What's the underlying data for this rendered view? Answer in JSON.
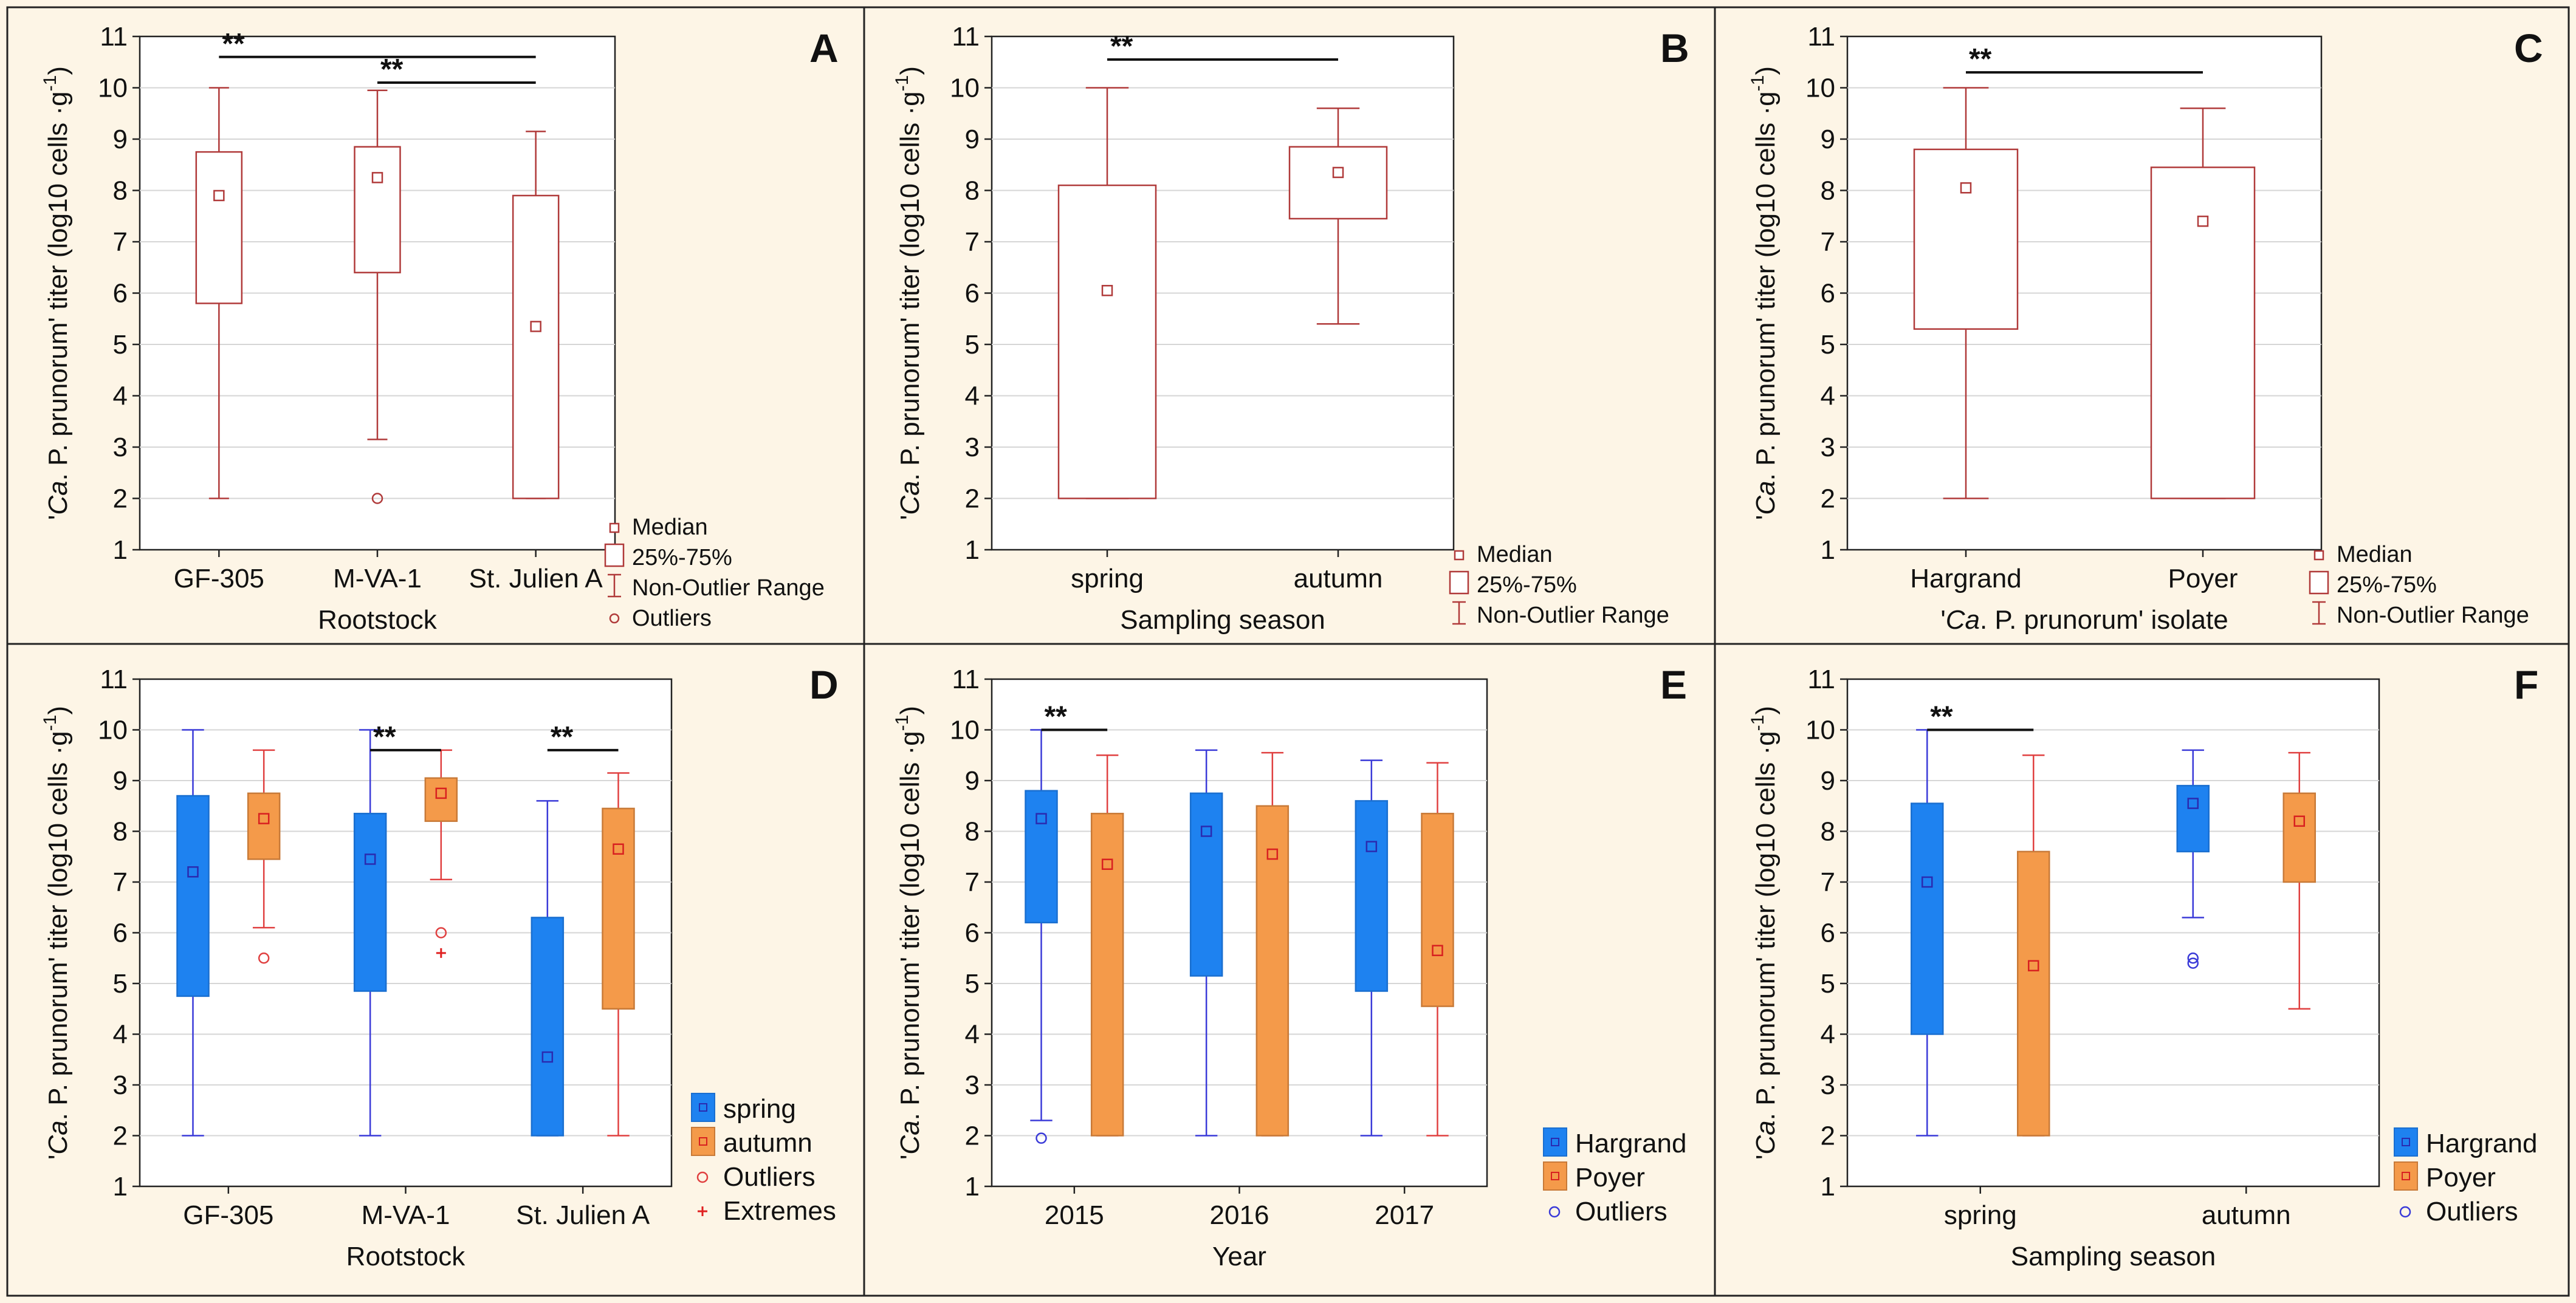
{
  "figure": {
    "background": "#fdf5e6",
    "panel_border": "#222222",
    "box_color_single": "#b03a3a",
    "spring_fill": "#1e82f0",
    "spring_line": "#3a3ad8",
    "autumn_fill": "#f49a4a",
    "autumn_line": "#e04040"
  },
  "chart_data": [
    {
      "panel": "A",
      "type": "boxplot",
      "title": "",
      "ylabel_main": "'",
      "ylabel_italic": "Ca",
      "ylabel_rest": ". P. prunorum' titer (log10 cells ·g",
      "ylabel_sup": "-1",
      "ylabel_end": ")",
      "xlabel": "Rootstock",
      "xlabel_italic": "",
      "xlabel_end": "",
      "ylim": [
        1,
        11
      ],
      "yticks": [
        1,
        2,
        3,
        4,
        5,
        6,
        7,
        8,
        9,
        10,
        11
      ],
      "categories": [
        "GF-305",
        "M-VA-1",
        "St. Julien A"
      ],
      "series": [
        {
          "name": "",
          "style": "single",
          "boxes": [
            {
              "cat": 0,
              "median": 7.9,
              "q1": 5.8,
              "q3": 8.75,
              "min": 2.0,
              "max": 10.0,
              "outliers": [],
              "extremes": []
            },
            {
              "cat": 1,
              "median": 8.25,
              "q1": 6.4,
              "q3": 8.85,
              "min": 3.15,
              "max": 9.95,
              "outliers": [
                2.0
              ],
              "extremes": []
            },
            {
              "cat": 2,
              "median": 5.35,
              "q1": 2.0,
              "q3": 7.9,
              "min": 2.0,
              "max": 9.15,
              "outliers": [],
              "extremes": []
            }
          ]
        }
      ],
      "significance": [
        {
          "from": 0,
          "to": 2,
          "level": 10.6,
          "label": "**"
        },
        {
          "from": 1,
          "to": 2,
          "level": 10.1,
          "label": "**"
        }
      ],
      "legend": [
        {
          "symbol": "median",
          "label": "Median"
        },
        {
          "symbol": "box",
          "label": "25%-75%"
        },
        {
          "symbol": "whisker",
          "label": "Non-Outlier Range"
        },
        {
          "symbol": "outlier",
          "label": "Outliers"
        }
      ]
    },
    {
      "panel": "B",
      "type": "boxplot",
      "title": "",
      "ylabel_main": "'",
      "ylabel_italic": "Ca",
      "ylabel_rest": ". P. prunorum' titer (log10 cells ·g",
      "ylabel_sup": "-1",
      "ylabel_end": ")",
      "xlabel": "Sampling season",
      "xlabel_italic": "",
      "xlabel_end": "",
      "ylim": [
        1,
        11
      ],
      "yticks": [
        1,
        2,
        3,
        4,
        5,
        6,
        7,
        8,
        9,
        10,
        11
      ],
      "categories": [
        "spring",
        "autumn"
      ],
      "series": [
        {
          "name": "",
          "style": "single",
          "boxes": [
            {
              "cat": 0,
              "median": 6.05,
              "q1": 2.0,
              "q3": 8.1,
              "min": 2.0,
              "max": 10.0,
              "outliers": [],
              "extremes": []
            },
            {
              "cat": 1,
              "median": 8.35,
              "q1": 7.45,
              "q3": 8.85,
              "min": 5.4,
              "max": 9.6,
              "outliers": [],
              "extremes": []
            }
          ]
        }
      ],
      "significance": [
        {
          "from": 0,
          "to": 1,
          "level": 10.55,
          "label": "**"
        }
      ],
      "legend": [
        {
          "symbol": "median",
          "label": "Median"
        },
        {
          "symbol": "box",
          "label": "25%-75%"
        },
        {
          "symbol": "whisker",
          "label": "Non-Outlier Range"
        }
      ]
    },
    {
      "panel": "C",
      "type": "boxplot",
      "title": "",
      "ylabel_main": "'",
      "ylabel_italic": "Ca",
      "ylabel_rest": ". P. prunorum' titer (log10 cells ·g",
      "ylabel_sup": "-1",
      "ylabel_end": ")",
      "xlabel": "'",
      "xlabel_italic": "Ca",
      "xlabel_end": ". P. prunorum' isolate",
      "ylim": [
        1,
        11
      ],
      "yticks": [
        1,
        2,
        3,
        4,
        5,
        6,
        7,
        8,
        9,
        10,
        11
      ],
      "categories": [
        "Hargrand",
        "Poyer"
      ],
      "series": [
        {
          "name": "",
          "style": "single",
          "boxes": [
            {
              "cat": 0,
              "median": 8.05,
              "q1": 5.3,
              "q3": 8.8,
              "min": 2.0,
              "max": 10.0,
              "outliers": [],
              "extremes": []
            },
            {
              "cat": 1,
              "median": 7.4,
              "q1": 2.0,
              "q3": 8.45,
              "min": 2.0,
              "max": 9.6,
              "outliers": [],
              "extremes": []
            }
          ]
        }
      ],
      "significance": [
        {
          "from": 0,
          "to": 1,
          "level": 10.3,
          "label": "**"
        }
      ],
      "legend": [
        {
          "symbol": "median",
          "label": "Median"
        },
        {
          "symbol": "box",
          "label": "25%-75%"
        },
        {
          "symbol": "whisker",
          "label": "Non-Outlier Range"
        }
      ]
    },
    {
      "panel": "D",
      "type": "boxplot",
      "title": "",
      "ylabel_main": "'",
      "ylabel_italic": "Ca",
      "ylabel_rest": ". P. prunorum' titer (log10 cells ·g",
      "ylabel_sup": "-1",
      "ylabel_end": ")",
      "xlabel": "Rootstock",
      "xlabel_italic": "",
      "xlabel_end": "",
      "ylim": [
        1,
        11
      ],
      "yticks": [
        1,
        2,
        3,
        4,
        5,
        6,
        7,
        8,
        9,
        10,
        11
      ],
      "categories": [
        "GF-305",
        "M-VA-1",
        "St. Julien A"
      ],
      "series": [
        {
          "name": "spring",
          "style": "spring",
          "boxes": [
            {
              "cat": 0,
              "median": 7.2,
              "q1": 4.75,
              "q3": 8.7,
              "min": 2.0,
              "max": 10.0,
              "outliers": [],
              "extremes": []
            },
            {
              "cat": 1,
              "median": 7.45,
              "q1": 4.85,
              "q3": 8.35,
              "min": 2.0,
              "max": 10.0,
              "outliers": [],
              "extremes": []
            },
            {
              "cat": 2,
              "median": 3.55,
              "q1": 2.0,
              "q3": 6.3,
              "min": 2.0,
              "max": 8.6,
              "outliers": [],
              "extremes": []
            }
          ]
        },
        {
          "name": "autumn",
          "style": "autumn",
          "boxes": [
            {
              "cat": 0,
              "median": 8.25,
              "q1": 7.45,
              "q3": 8.75,
              "min": 6.1,
              "max": 9.6,
              "outliers": [
                5.5
              ],
              "extremes": []
            },
            {
              "cat": 1,
              "median": 8.75,
              "q1": 8.2,
              "q3": 9.05,
              "min": 7.05,
              "max": 9.6,
              "outliers": [
                6.0
              ],
              "extremes": [
                5.6
              ]
            },
            {
              "cat": 2,
              "median": 7.65,
              "q1": 4.5,
              "q3": 8.45,
              "min": 2.0,
              "max": 9.15,
              "outliers": [],
              "extremes": []
            }
          ]
        }
      ],
      "significance": [
        {
          "from": 1,
          "to": 1,
          "level": 9.6,
          "label": "**"
        },
        {
          "from": 2,
          "to": 2,
          "level": 9.6,
          "label": "**"
        }
      ],
      "legend": [
        {
          "symbol": "spring",
          "label": "spring"
        },
        {
          "symbol": "autumn",
          "label": "autumn"
        },
        {
          "symbol": "outlier-red",
          "label": "Outliers"
        },
        {
          "symbol": "extreme",
          "label": "Extremes"
        }
      ]
    },
    {
      "panel": "E",
      "type": "boxplot",
      "title": "",
      "ylabel_main": "'",
      "ylabel_italic": "Ca",
      "ylabel_rest": ". P. prunorum' titer (log10 cells ·g",
      "ylabel_sup": "-1",
      "ylabel_end": ")",
      "xlabel": "Year",
      "xlabel_italic": "",
      "xlabel_end": "",
      "ylim": [
        1,
        11
      ],
      "yticks": [
        1,
        2,
        3,
        4,
        5,
        6,
        7,
        8,
        9,
        10,
        11
      ],
      "categories": [
        "2015",
        "2016",
        "2017"
      ],
      "series": [
        {
          "name": "Hargrand",
          "style": "spring",
          "boxes": [
            {
              "cat": 0,
              "median": 8.25,
              "q1": 6.2,
              "q3": 8.8,
              "min": 2.3,
              "max": 10.0,
              "outliers": [
                1.95
              ],
              "extremes": []
            },
            {
              "cat": 1,
              "median": 8.0,
              "q1": 5.15,
              "q3": 8.75,
              "min": 2.0,
              "max": 9.6,
              "outliers": [],
              "extremes": []
            },
            {
              "cat": 2,
              "median": 7.7,
              "q1": 4.85,
              "q3": 8.6,
              "min": 2.0,
              "max": 9.4,
              "outliers": [],
              "extremes": []
            }
          ]
        },
        {
          "name": "Poyer",
          "style": "autumn",
          "boxes": [
            {
              "cat": 0,
              "median": 7.35,
              "q1": 2.0,
              "q3": 8.35,
              "min": 2.0,
              "max": 9.5,
              "outliers": [],
              "extremes": []
            },
            {
              "cat": 1,
              "median": 7.55,
              "q1": 2.0,
              "q3": 8.5,
              "min": 2.0,
              "max": 9.55,
              "outliers": [],
              "extremes": []
            },
            {
              "cat": 2,
              "median": 5.65,
              "q1": 4.55,
              "q3": 8.35,
              "min": 2.0,
              "max": 9.35,
              "outliers": [],
              "extremes": []
            }
          ]
        }
      ],
      "significance": [
        {
          "from": 0,
          "to": 0,
          "level": 10.0,
          "label": "**"
        }
      ],
      "legend": [
        {
          "symbol": "spring",
          "label": "Hargrand"
        },
        {
          "symbol": "autumn",
          "label": "Poyer"
        },
        {
          "symbol": "outlier-blue",
          "label": "Outliers"
        }
      ]
    },
    {
      "panel": "F",
      "type": "boxplot",
      "title": "",
      "ylabel_main": "'",
      "ylabel_italic": "Ca",
      "ylabel_rest": ". P. prunorum' titer (log10 cells ·g",
      "ylabel_sup": "-1",
      "ylabel_end": ")",
      "xlabel": "Sampling season",
      "xlabel_italic": "",
      "xlabel_end": "",
      "ylim": [
        1,
        11
      ],
      "yticks": [
        1,
        2,
        3,
        4,
        5,
        6,
        7,
        8,
        9,
        10,
        11
      ],
      "categories": [
        "spring",
        "autumn"
      ],
      "series": [
        {
          "name": "Hargrand",
          "style": "spring",
          "boxes": [
            {
              "cat": 0,
              "median": 7.0,
              "q1": 4.0,
              "q3": 8.55,
              "min": 2.0,
              "max": 10.0,
              "outliers": [],
              "extremes": []
            },
            {
              "cat": 1,
              "median": 8.55,
              "q1": 7.6,
              "q3": 8.9,
              "min": 6.3,
              "max": 9.6,
              "outliers": [
                5.5,
                5.4
              ],
              "extremes": []
            }
          ]
        },
        {
          "name": "Poyer",
          "style": "autumn",
          "boxes": [
            {
              "cat": 0,
              "median": 5.35,
              "q1": 2.0,
              "q3": 7.6,
              "min": 2.0,
              "max": 9.5,
              "outliers": [],
              "extremes": []
            },
            {
              "cat": 1,
              "median": 8.2,
              "q1": 7.0,
              "q3": 8.75,
              "min": 4.5,
              "max": 9.55,
              "outliers": [],
              "extremes": []
            }
          ]
        }
      ],
      "significance": [
        {
          "from": 0,
          "to": 0,
          "level": 10.0,
          "label": "**"
        }
      ],
      "legend": [
        {
          "symbol": "spring",
          "label": "Hargrand"
        },
        {
          "symbol": "autumn",
          "label": "Poyer"
        },
        {
          "symbol": "outlier-blue",
          "label": "Outliers"
        }
      ]
    }
  ]
}
